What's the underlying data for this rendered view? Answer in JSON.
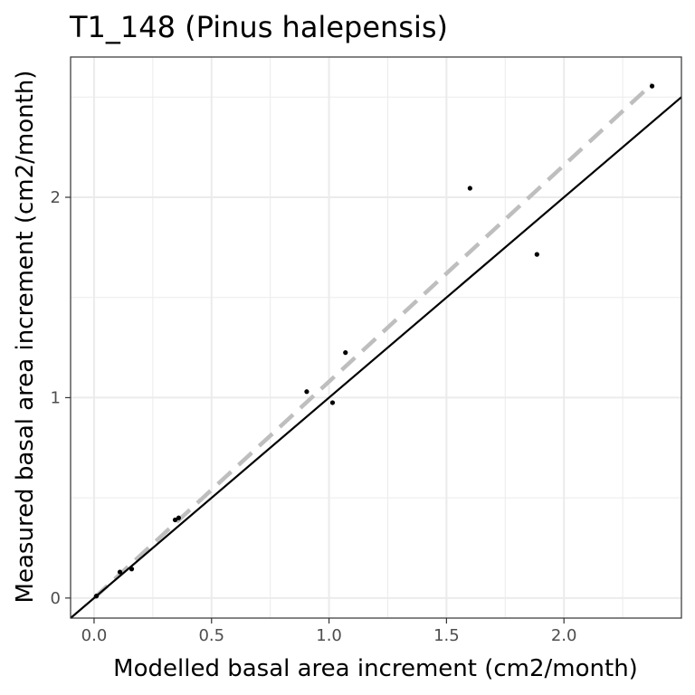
{
  "chart_data": {
    "type": "scatter",
    "title": "T1_148 (Pinus halepensis)",
    "xlabel": "Modelled basal area increment (cm2/month)",
    "ylabel": "Measured basal area increment (cm2/month)",
    "xlim": [
      -0.1,
      2.5
    ],
    "ylim": [
      -0.1,
      2.7
    ],
    "x_ticks": [
      0.0,
      0.5,
      1.0,
      1.5,
      2.0
    ],
    "x_tick_labels": [
      "0.0",
      "0.5",
      "1.0",
      "1.5",
      "2.0"
    ],
    "y_ticks": [
      0,
      1,
      2
    ],
    "y_tick_labels": [
      "0",
      "1",
      "2"
    ],
    "grid": true,
    "points": [
      {
        "x": 0.01,
        "y": 0.01
      },
      {
        "x": 0.11,
        "y": 0.13
      },
      {
        "x": 0.16,
        "y": 0.145
      },
      {
        "x": 0.345,
        "y": 0.39
      },
      {
        "x": 0.36,
        "y": 0.4
      },
      {
        "x": 0.905,
        "y": 1.03
      },
      {
        "x": 1.015,
        "y": 0.975
      },
      {
        "x": 1.07,
        "y": 1.225
      },
      {
        "x": 1.6,
        "y": 2.045
      },
      {
        "x": 1.885,
        "y": 1.715
      },
      {
        "x": 2.375,
        "y": 2.555
      }
    ],
    "reference_line": {
      "type": "identity",
      "slope": 1,
      "intercept": 0,
      "color": "#000000"
    },
    "fit_line": {
      "type": "linear",
      "slope": 1.08,
      "intercept": 0.0,
      "color": "#bebebe",
      "dashed": true
    },
    "point_color": "#000000",
    "grid_color": "#ebebeb"
  }
}
